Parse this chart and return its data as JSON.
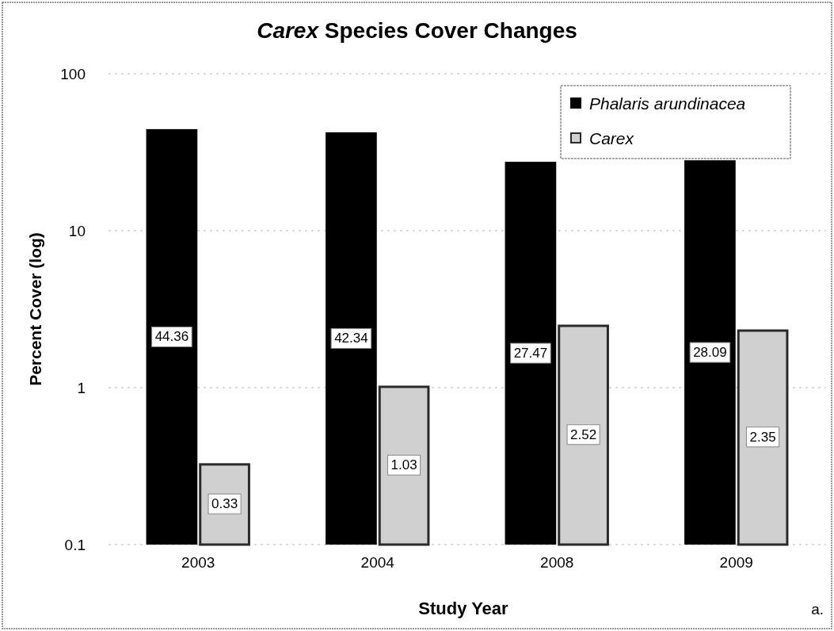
{
  "chart_data": {
    "type": "bar",
    "title": "Carex Species Cover Changes",
    "xlabel": "Study Year",
    "ylabel": "Percent Cover (log)",
    "annotations": [
      "a."
    ],
    "categories": [
      "2003",
      "2004",
      "2008",
      "2009"
    ],
    "series": [
      {
        "name": "Phalaris arundinacea",
        "color": "#000000",
        "values": [
          44.36,
          42.34,
          27.47,
          28.09
        ]
      },
      {
        "name": "Carex",
        "color": "#d0d0d0",
        "values": [
          0.33,
          1.03,
          2.52,
          2.35
        ]
      }
    ],
    "log": true,
    "ylim": [
      0.1,
      100
    ],
    "yticks": [
      0.1,
      1,
      10,
      100
    ],
    "grid": "y",
    "legend": "top right",
    "data_labels": true
  }
}
